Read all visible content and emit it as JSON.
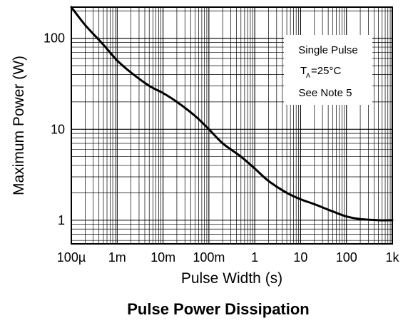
{
  "chart_data": {
    "type": "line",
    "xlabel": "Pulse Width (s)",
    "ylabel": "Maximum Power (W)",
    "caption": "Pulse Power Dissipation",
    "x_scale": "log",
    "y_scale": "log",
    "xlim": [
      0.0001,
      1000
    ],
    "ylim": [
      0.55,
      220
    ],
    "grid": true,
    "x_ticks": [
      {
        "value": 0.0001,
        "label": "100µ"
      },
      {
        "value": 0.001,
        "label": "1m"
      },
      {
        "value": 0.01,
        "label": "10m"
      },
      {
        "value": 0.1,
        "label": "100m"
      },
      {
        "value": 1,
        "label": "1"
      },
      {
        "value": 10,
        "label": "10"
      },
      {
        "value": 100,
        "label": "100"
      },
      {
        "value": 1000,
        "label": "1k"
      }
    ],
    "y_ticks": [
      {
        "value": 1,
        "label": "1"
      },
      {
        "value": 10,
        "label": "10"
      },
      {
        "value": 100,
        "label": "100"
      }
    ],
    "annotation": {
      "line1": "Single Pulse",
      "line2_T": "T",
      "line2_sub": "A",
      "line2_rest": "=25°C",
      "line3": "See Note 5"
    },
    "series": [
      {
        "color": "#000000",
        "x": [
          0.0001,
          0.0002,
          0.0005,
          0.001,
          0.002,
          0.005,
          0.01,
          0.02,
          0.05,
          0.1,
          0.2,
          0.5,
          1,
          2,
          5,
          10,
          20,
          50,
          100,
          200,
          500,
          1000
        ],
        "y": [
          220,
          140,
          85,
          57,
          42,
          30,
          25,
          20,
          14,
          10,
          7,
          5,
          3.7,
          2.7,
          2,
          1.7,
          1.5,
          1.25,
          1.1,
          1.03,
          1.0,
          1.0
        ]
      }
    ]
  }
}
